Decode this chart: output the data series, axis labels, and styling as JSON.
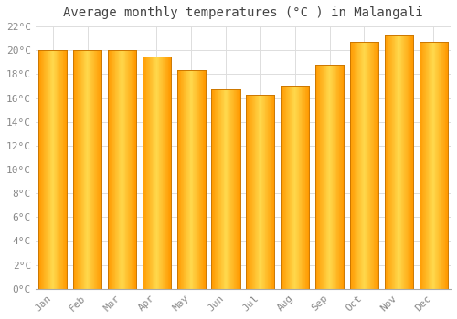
{
  "title": "Average monthly temperatures (°C ) in Malangali",
  "months": [
    "Jan",
    "Feb",
    "Mar",
    "Apr",
    "May",
    "Jun",
    "Jul",
    "Aug",
    "Sep",
    "Oct",
    "Nov",
    "Dec"
  ],
  "values": [
    20.0,
    20.0,
    20.0,
    19.5,
    18.3,
    16.7,
    16.3,
    17.0,
    18.8,
    20.7,
    21.3,
    20.7
  ],
  "bar_color_center": "#FFD966",
  "bar_color_edge": "#FFA500",
  "background_color": "#FFFFFF",
  "grid_color": "#DDDDDD",
  "ylim": [
    0,
    22
  ],
  "ytick_step": 2,
  "title_fontsize": 10,
  "tick_fontsize": 8,
  "font_family": "monospace",
  "bar_width": 0.82
}
